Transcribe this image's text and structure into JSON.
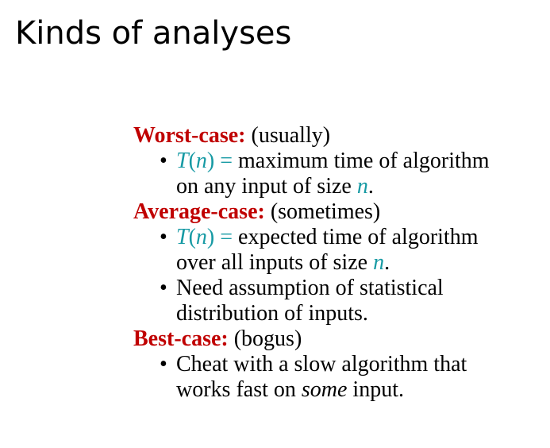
{
  "title": "Kinds of analyses",
  "colors": {
    "heading": "#c00000",
    "math": "#179aa4",
    "text": "#000000"
  },
  "sections": [
    {
      "label": "Worst-case:",
      "note": "(usually)",
      "bullets": [
        {
          "math_T": "T",
          "math_open": "(",
          "math_n": "n",
          "math_close": ")",
          "math_eq": " =",
          "line1_rest": " maximum time of algorithm",
          "line2_pre": "on any input of size ",
          "line2_var": "n",
          "line2_post": "."
        }
      ]
    },
    {
      "label": "Average-case:",
      "note": "(sometimes)",
      "bullets": [
        {
          "math_T": "T",
          "math_open": "(",
          "math_n": "n",
          "math_close": ")",
          "math_eq": " =",
          "line1_rest": " expected time of algorithm",
          "line2_pre": "over all inputs of size ",
          "line2_var": "n",
          "line2_post": "."
        },
        {
          "line1": "Need assumption of statistical",
          "line2": "distribution of inputs."
        }
      ]
    },
    {
      "label": "Best-case:",
      "note": "(bogus)",
      "bullets": [
        {
          "line1": "Cheat with a slow algorithm that",
          "line2_pre": "works fast on ",
          "line2_emph": "some",
          "line2_post": " input."
        }
      ]
    }
  ],
  "bullet_glyph": "•"
}
